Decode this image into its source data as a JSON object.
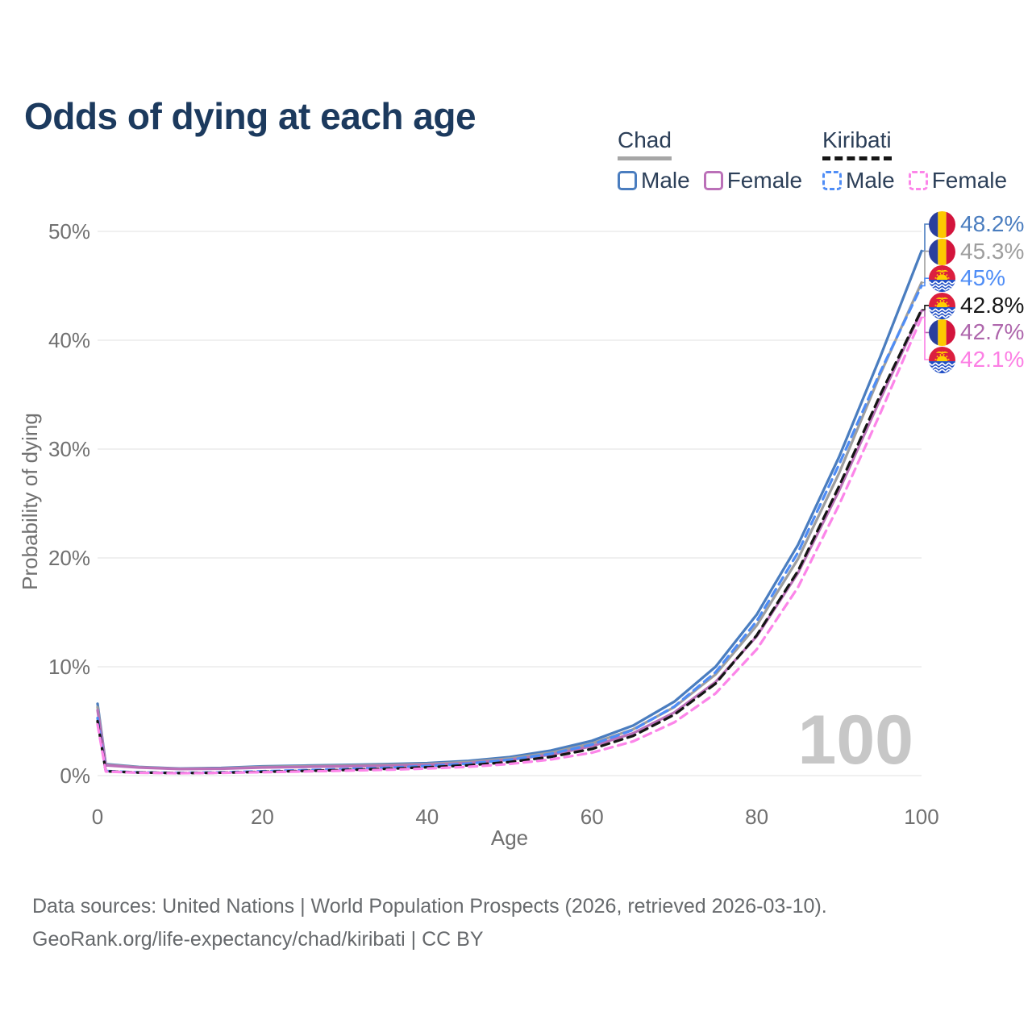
{
  "title": "Odds of dying at each age",
  "legend": {
    "groups": [
      {
        "name": "Chad",
        "line_style": "solid",
        "underline_color": "#a6a6a6",
        "items": [
          {
            "label": "Male",
            "color": "#4a7dbf"
          },
          {
            "label": "Female",
            "color": "#bb70b8"
          }
        ]
      },
      {
        "name": "Kiribati",
        "line_style": "dashed",
        "underline_color": "#161616",
        "items": [
          {
            "label": "Male",
            "color": "#4f8df6"
          },
          {
            "label": "Female",
            "color": "#fc85e9"
          }
        ]
      }
    ]
  },
  "chart_data": {
    "type": "line",
    "title": "Odds of dying at each age",
    "xlabel": "Age",
    "ylabel": "Probability of dying",
    "xlim": [
      0,
      100
    ],
    "ylim": [
      0,
      50
    ],
    "x_ticks": [
      0,
      20,
      40,
      60,
      80,
      100
    ],
    "y_ticks": [
      0,
      10,
      20,
      30,
      40,
      50
    ],
    "y_tick_suffix": "%",
    "grid": "horizontal",
    "legend_position": "top-right",
    "hover_age_indicator": "100",
    "x": [
      0,
      1,
      5,
      10,
      15,
      20,
      25,
      30,
      35,
      40,
      45,
      50,
      55,
      60,
      65,
      70,
      75,
      80,
      85,
      90,
      95,
      100
    ],
    "series": [
      {
        "key": "chad_male",
        "name": "Chad Male",
        "country": "Chad",
        "sex": "Male",
        "color": "#4a7dbf",
        "dash": "solid",
        "values": [
          6.6,
          1.05,
          0.8,
          0.65,
          0.7,
          0.85,
          0.92,
          0.98,
          1.05,
          1.15,
          1.35,
          1.7,
          2.3,
          3.2,
          4.6,
          6.8,
          10.0,
          14.8,
          21.2,
          29.3,
          38.5,
          48.2
        ],
        "end_value_label": "48.2%"
      },
      {
        "key": "chad_total",
        "name": "Chad Both sexes",
        "country": "Chad",
        "sex": "Both",
        "color": "#9e9e9e",
        "dash": "solid",
        "values": [
          6.3,
          1.0,
          0.77,
          0.62,
          0.66,
          0.8,
          0.86,
          0.92,
          0.98,
          1.07,
          1.25,
          1.57,
          2.1,
          2.95,
          4.25,
          6.3,
          9.3,
          13.8,
          19.9,
          27.8,
          36.9,
          45.3
        ],
        "end_value_label": "45.3%"
      },
      {
        "key": "chad_female",
        "name": "Chad Female",
        "country": "Chad",
        "sex": "Female",
        "color": "#bb70b8",
        "dash": "solid",
        "values": [
          6.0,
          0.95,
          0.74,
          0.6,
          0.63,
          0.74,
          0.8,
          0.85,
          0.9,
          0.99,
          1.15,
          1.45,
          1.92,
          2.7,
          3.9,
          5.8,
          8.6,
          12.8,
          18.6,
          26.2,
          34.6,
          42.7
        ],
        "end_value_label": "42.7%"
      },
      {
        "key": "kiribati_male",
        "name": "Kiribati Male",
        "country": "Kiribati",
        "sex": "Male",
        "color": "#4f8df6",
        "dash": "dashed",
        "values": [
          5.3,
          0.42,
          0.3,
          0.25,
          0.3,
          0.4,
          0.5,
          0.6,
          0.72,
          0.88,
          1.1,
          1.45,
          2.0,
          2.85,
          4.2,
          6.35,
          9.5,
          14.2,
          20.5,
          28.6,
          37.1,
          45.0
        ],
        "end_value_label": "45%"
      },
      {
        "key": "kiribati_total",
        "name": "Kiribati Both sexes",
        "country": "Kiribati",
        "sex": "Both",
        "color": "#161616",
        "dash": "dashed",
        "values": [
          5.0,
          0.4,
          0.28,
          0.23,
          0.27,
          0.35,
          0.43,
          0.52,
          0.62,
          0.76,
          0.95,
          1.25,
          1.72,
          2.45,
          3.65,
          5.6,
          8.45,
          12.9,
          18.8,
          26.6,
          35.0,
          42.8
        ],
        "end_value_label": "42.8%"
      },
      {
        "key": "kiribati_female",
        "name": "Kiribati Female",
        "country": "Kiribati",
        "sex": "Female",
        "color": "#fc85e9",
        "dash": "dashed",
        "values": [
          4.7,
          0.38,
          0.26,
          0.22,
          0.25,
          0.31,
          0.38,
          0.45,
          0.53,
          0.65,
          0.81,
          1.07,
          1.48,
          2.1,
          3.15,
          4.9,
          7.55,
          11.6,
          17.3,
          24.9,
          33.3,
          42.1
        ],
        "end_value_label": "42.1%"
      }
    ]
  },
  "end_labels": [
    {
      "series": "chad_male",
      "label": "48.2%",
      "color": "#4a7dbf",
      "flag": "chad"
    },
    {
      "series": "chad_total",
      "label": "45.3%",
      "color": "#9e9e9e",
      "flag": "chad"
    },
    {
      "series": "kiribati_male",
      "label": "45%",
      "color": "#4f8df6",
      "flag": "kiribati"
    },
    {
      "series": "kiribati_total",
      "label": "42.8%",
      "color": "#161616",
      "flag": "kiribati"
    },
    {
      "series": "chad_female",
      "label": "42.7%",
      "color": "#ae66ac",
      "flag": "chad"
    },
    {
      "series": "kiribati_female",
      "label": "42.1%",
      "color": "#fc7fe4",
      "flag": "kiribati"
    }
  ],
  "flag_colors": {
    "chad": {
      "blue": "#2a3f9d",
      "yellow": "#fdc900",
      "red": "#d3143c"
    },
    "kiribati": {
      "red": "#dc1f3e",
      "blue": "#1f4dc5",
      "yellow": "#ffcf00",
      "white": "#ffffff"
    }
  },
  "footer": {
    "line1": "Data sources: United Nations | World Population Prospects (2026, retrieved 2026-03-10).",
    "line2": "GeoRank.org/life-expectancy/chad/kiribati | CC BY"
  },
  "colors": {
    "title": "#1c3a5e",
    "grid": "#e7e7e7",
    "tick_text": "#707070",
    "watermark": "#c7c7c7",
    "footer_text": "#66696c"
  }
}
